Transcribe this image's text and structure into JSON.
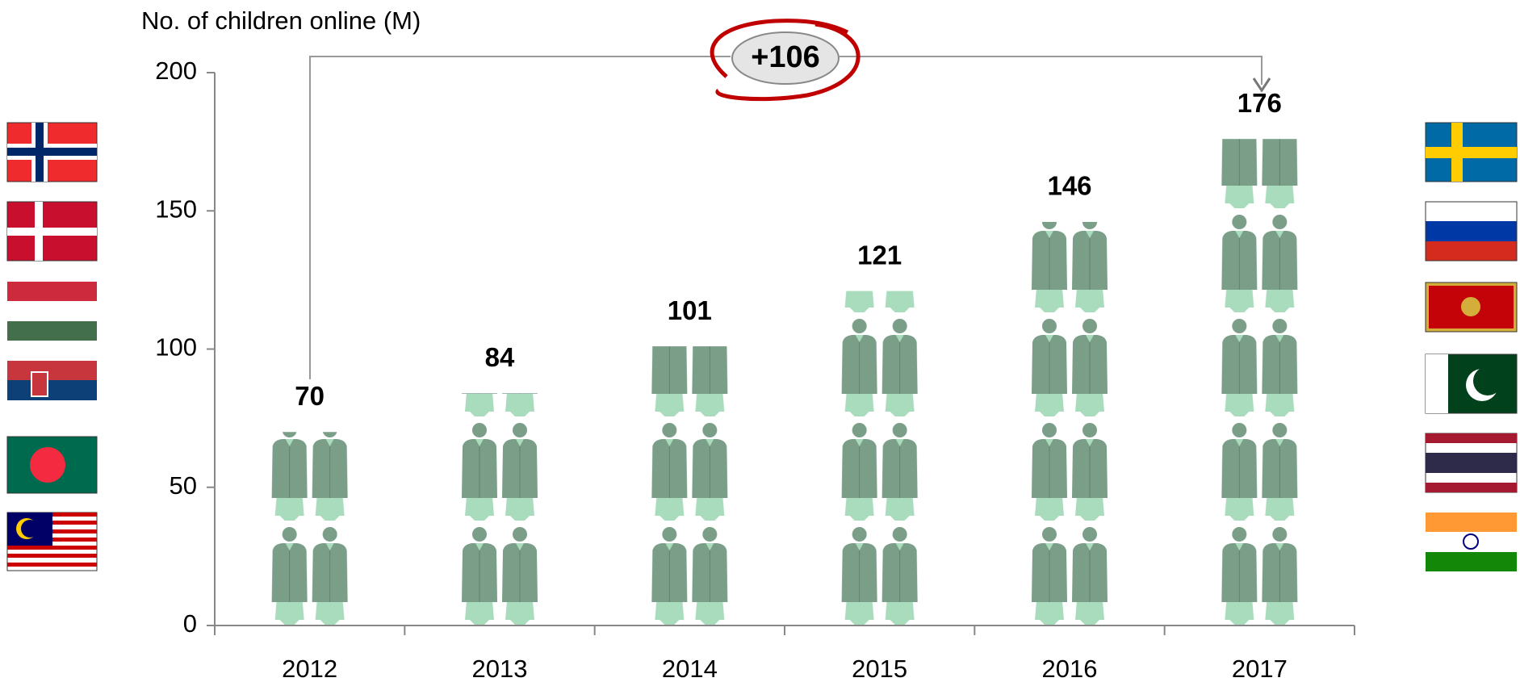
{
  "chart_data": {
    "type": "bar",
    "title": "No. of children online (M)",
    "categories": [
      "2012",
      "2013",
      "2014",
      "2015",
      "2016",
      "2017"
    ],
    "values": [
      70,
      84,
      101,
      121,
      146,
      176
    ],
    "color": "#7b9e88",
    "ylim": [
      0,
      200
    ],
    "yticks": [
      0,
      50,
      100,
      150,
      200
    ],
    "annotation": "+106"
  }
}
